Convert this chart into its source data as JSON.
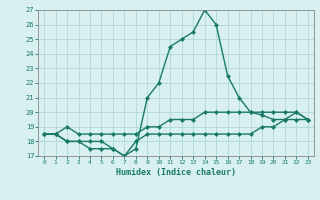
{
  "xlabel": "Humidex (Indice chaleur)",
  "x": [
    0,
    1,
    2,
    3,
    4,
    5,
    6,
    7,
    8,
    9,
    10,
    11,
    12,
    13,
    14,
    15,
    16,
    17,
    18,
    19,
    20,
    21,
    22,
    23
  ],
  "y_main": [
    18.5,
    18.5,
    18.0,
    18.0,
    17.5,
    17.5,
    17.5,
    17.0,
    17.5,
    21.0,
    22.0,
    24.5,
    25.0,
    25.5,
    27.0,
    26.0,
    22.5,
    21.0,
    20.0,
    19.8,
    19.5,
    19.5,
    20.0,
    19.5
  ],
  "y_min": [
    18.5,
    18.5,
    18.0,
    18.0,
    18.0,
    18.0,
    17.5,
    17.0,
    18.0,
    18.5,
    18.5,
    18.5,
    18.5,
    18.5,
    18.5,
    18.5,
    18.5,
    18.5,
    18.5,
    19.0,
    19.0,
    19.5,
    19.5,
    19.5
  ],
  "y_max": [
    18.5,
    18.5,
    19.0,
    18.5,
    18.5,
    18.5,
    18.5,
    18.5,
    18.5,
    19.0,
    19.0,
    19.5,
    19.5,
    19.5,
    20.0,
    20.0,
    20.0,
    20.0,
    20.0,
    20.0,
    20.0,
    20.0,
    20.0,
    19.5
  ],
  "line_color": "#1a7a6a",
  "bg_color": "#d8f0f0",
  "grid_color": "#b0d8d8",
  "ylim": [
    17,
    27
  ],
  "xlim": [
    -0.5,
    23.5
  ],
  "yticks": [
    17,
    18,
    19,
    20,
    21,
    22,
    23,
    24,
    25,
    26,
    27
  ],
  "xticks": [
    0,
    1,
    2,
    3,
    4,
    5,
    6,
    7,
    8,
    9,
    10,
    11,
    12,
    13,
    14,
    15,
    16,
    17,
    18,
    19,
    20,
    21,
    22,
    23
  ],
  "marker": "D",
  "markersize": 2,
  "linewidth": 1.0
}
